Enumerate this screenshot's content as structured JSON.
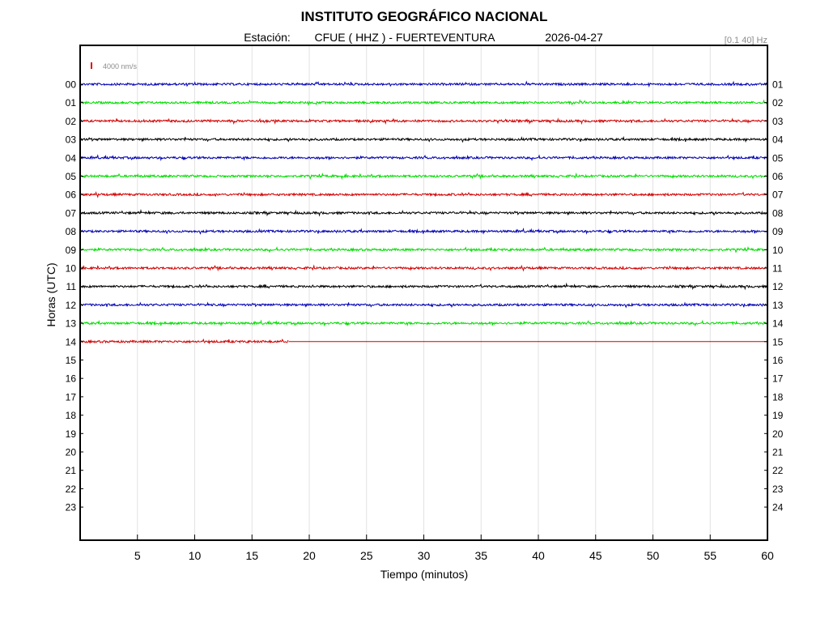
{
  "header": {
    "title": "INSTITUTO GEOGRÁFICO NACIONAL",
    "station_prefix": "Estación:",
    "station": "CFUE ( HHZ ) - FUERTEVENTURA",
    "date": "2026-04-27",
    "filter": "[0.1 40] Hz",
    "scale_label": "4000 nm/s",
    "scale_color": "#e00000"
  },
  "chart_data": {
    "type": "line",
    "title": "INSTITUTO GEOGRÁFICO NACIONAL",
    "xlabel": "Tiempo (minutos)",
    "ylabel": "Horas (UTC)",
    "xlim": [
      0,
      60
    ],
    "x_ticks": [
      5,
      10,
      15,
      20,
      25,
      30,
      35,
      40,
      45,
      50,
      55,
      60
    ],
    "x_grid": true,
    "left_hour_labels": [
      "00",
      "01",
      "02",
      "03",
      "04",
      "05",
      "06",
      "07",
      "08",
      "09",
      "10",
      "11",
      "12",
      "13",
      "14",
      "15",
      "16",
      "17",
      "18",
      "19",
      "20",
      "21",
      "22",
      "23"
    ],
    "right_hour_labels": [
      "01",
      "02",
      "03",
      "04",
      "05",
      "06",
      "07",
      "08",
      "09",
      "10",
      "11",
      "12",
      "13",
      "14",
      "15",
      "16",
      "17",
      "18",
      "19",
      "20",
      "21",
      "22",
      "23",
      "24"
    ],
    "trace_color_cycle": [
      "#0000b4",
      "#00dc00",
      "#d20000",
      "#000000"
    ],
    "series": [
      {
        "hour": "00",
        "color": "#0000b4",
        "data_until_min": 60
      },
      {
        "hour": "01",
        "color": "#00dc00",
        "data_until_min": 60
      },
      {
        "hour": "02",
        "color": "#d20000",
        "data_until_min": 60
      },
      {
        "hour": "03",
        "color": "#000000",
        "data_until_min": 60
      },
      {
        "hour": "04",
        "color": "#0000b4",
        "data_until_min": 60
      },
      {
        "hour": "05",
        "color": "#00dc00",
        "data_until_min": 60
      },
      {
        "hour": "06",
        "color": "#d20000",
        "data_until_min": 60
      },
      {
        "hour": "07",
        "color": "#000000",
        "data_until_min": 60
      },
      {
        "hour": "08",
        "color": "#0000b4",
        "data_until_min": 60
      },
      {
        "hour": "09",
        "color": "#00dc00",
        "data_until_min": 60
      },
      {
        "hour": "10",
        "color": "#d20000",
        "data_until_min": 60
      },
      {
        "hour": "11",
        "color": "#000000",
        "data_until_min": 60
      },
      {
        "hour": "12",
        "color": "#0000b4",
        "data_until_min": 60
      },
      {
        "hour": "13",
        "color": "#00dc00",
        "data_until_min": 60
      },
      {
        "hour": "14",
        "color": "#d20000",
        "data_until_min": 18.2
      }
    ]
  }
}
